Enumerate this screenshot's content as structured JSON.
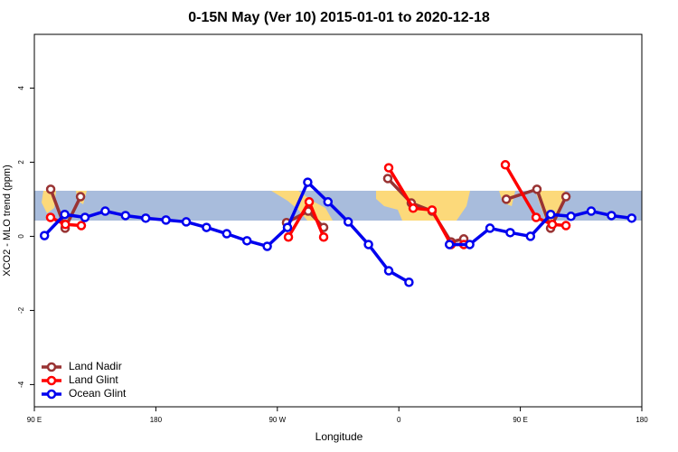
{
  "chart_data": {
    "type": "line",
    "title": "0-15N May (Ver 10)   2015-01-01 to 2020-12-18",
    "x_label": "Longitude",
    "y_label": "XCO2 - MLO trend (ppm)",
    "xlim": [
      90,
      540
    ],
    "ylim": [
      -4.6,
      5.45
    ],
    "xticks": [
      {
        "value": 90,
        "label": "90 E"
      },
      {
        "value": 180,
        "label": "180"
      },
      {
        "value": 270,
        "label": "90 W"
      },
      {
        "value": 360,
        "label": "0"
      },
      {
        "value": 450,
        "label": "90 E"
      },
      {
        "value": 540,
        "label": "180"
      }
    ],
    "yticks": [
      -4,
      -2,
      0,
      2,
      4
    ],
    "legend": "bottom-left",
    "series": [
      {
        "name": "Land Nadir",
        "color": "#993333",
        "x": [
          102.1,
          112.8,
          124.2,
          null,
          276.8,
          292.9,
          304.3,
          null,
          351.8,
          369.2,
          384.6,
          398.7,
          408.1,
          null,
          439.6,
          462.3,
          472.4,
          483.8
        ],
        "values": [
          1.27,
          0.22,
          1.07,
          null,
          0.37,
          0.68,
          0.24,
          null,
          1.56,
          0.9,
          0.68,
          -0.15,
          -0.07,
          null,
          1.0,
          1.27,
          0.22,
          1.07
        ]
      },
      {
        "name": "Land Glint",
        "color": "#ff0000",
        "x": [
          102,
          113,
          124.8,
          null,
          278.2,
          293.6,
          304.3,
          null,
          352.5,
          370.6,
          384.6,
          398.7,
          408.1,
          null,
          438.9,
          461.7,
          473.7,
          483.8
        ],
        "values": [
          0.51,
          0.32,
          0.29,
          null,
          -0.02,
          0.93,
          -0.02,
          null,
          1.85,
          0.76,
          0.71,
          -0.22,
          -0.22,
          null,
          1.93,
          0.51,
          0.32,
          0.29
        ]
      },
      {
        "name": "Ocean Glint",
        "color": "#0000ee",
        "x": [
          97.5,
          112.5,
          127.5,
          142.5,
          157.5,
          172.5,
          187.5,
          202.5,
          217.5,
          232.5,
          247.5,
          262.5,
          277.5,
          292.5,
          307.5,
          322.5,
          337.5,
          352.5,
          367.5,
          null,
          397.5,
          412.5,
          427.5,
          442.5,
          457.5,
          472.5,
          487.5,
          502.5,
          517.5,
          532.5
        ],
        "values": [
          0.02,
          0.59,
          0.51,
          0.68,
          0.56,
          0.49,
          0.44,
          0.39,
          0.24,
          0.07,
          -0.12,
          -0.27,
          0.24,
          1.46,
          0.93,
          0.39,
          -0.22,
          -0.93,
          -1.24,
          null,
          -0.22,
          -0.22,
          0.22,
          0.1,
          0.0,
          0.59,
          0.54,
          0.68,
          0.56,
          0.49
        ]
      }
    ]
  }
}
